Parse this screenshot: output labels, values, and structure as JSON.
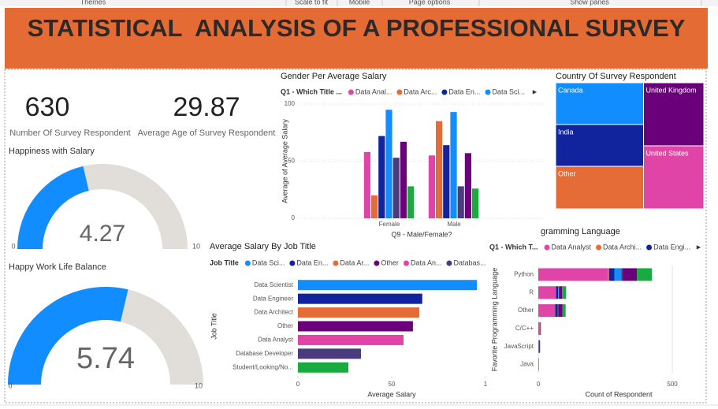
{
  "toolbar": {
    "items": [
      "Themes",
      "Scale to fit",
      "Mobile",
      "Page options",
      "Show panes"
    ]
  },
  "header": {
    "title": "STATISTICAL  ANALYSIS OF A PROFESSIONAL SURVEY"
  },
  "cards": [
    {
      "value": 630,
      "label": "Number Of Survey Respondent"
    },
    {
      "value": 29.87,
      "label": "Average Age of Survey Respondent"
    }
  ],
  "chart_data": [
    {
      "type": "gauge",
      "title": "Happiness with Salary",
      "value": 4.27,
      "min": 0,
      "max": 10,
      "color": "#118DFF",
      "track_color": "#E1DDD9"
    },
    {
      "type": "gauge",
      "title": "Happy Work Life Balance",
      "value": 5.74,
      "min": 0,
      "max": 10,
      "color": "#118DFF",
      "track_color": "#E1DDD9"
    },
    {
      "type": "column",
      "title": "Gender Per Average Salary",
      "legend_title": "Q1 - Which Title ...",
      "x_label": "Q9 - Male/Female?",
      "y_label": "Average of Average Salary",
      "categories": [
        "Female",
        "Male"
      ],
      "ylim": [
        0,
        100
      ],
      "yticks": [
        0,
        50,
        100
      ],
      "series": [
        {
          "name": "Data Anal...",
          "color": "#E044A7",
          "values": [
            58,
            55
          ]
        },
        {
          "name": "Data Arc...",
          "color": "#E66C37",
          "values": [
            20,
            85
          ]
        },
        {
          "name": "Data En...",
          "color": "#12239E",
          "values": [
            72,
            64
          ]
        },
        {
          "name": "Data Sci...",
          "color": "#118DFF",
          "values": [
            95,
            93
          ]
        },
        {
          "color": "#4A3B7C",
          "values": [
            53,
            28
          ]
        },
        {
          "color": "#6B007B",
          "values": [
            67,
            57
          ]
        },
        {
          "color": "#1AAB40",
          "values": [
            28,
            26
          ]
        }
      ]
    },
    {
      "type": "treemap",
      "title": "Country Of Survey Respondent",
      "categories": [
        "Canada",
        "India",
        "Other",
        "United Kingdom",
        "United States"
      ],
      "values": [
        59,
        59,
        60,
        61,
        61
      ],
      "colors": [
        "#118DFF",
        "#12239E",
        "#E66C37",
        "#6B007B",
        "#E044A7"
      ]
    },
    {
      "type": "hbar",
      "title": "Average Salary By Job Title",
      "legend_title": "Job Title",
      "legend": [
        "Data Sci...",
        "Data En...",
        "Data Ar...",
        "Other",
        "Data An...",
        "Databas..."
      ],
      "x_label": "Average Salary",
      "y_label": "Job Title",
      "categories": [
        "Data Scientist",
        "Data Engineer",
        "Data Architect",
        "Other",
        "Data Analyst",
        "Database Developer",
        "Student/Looking/No..."
      ],
      "values": [
        95.4,
        66.3,
        64.7,
        61.3,
        56.3,
        33.6,
        26.9
      ],
      "colors": [
        "#118DFF",
        "#12239E",
        "#E66C37",
        "#6B007B",
        "#E044A7",
        "#4A3B7C",
        "#1AAB40"
      ],
      "xlim": [
        0,
        100
      ],
      "xticks": [
        0,
        50,
        {
          "value": 100,
          "label": "1"
        }
      ]
    },
    {
      "type": "stacked_hbar",
      "title": "gramming Language",
      "legend_title": "Q1 - Which T...",
      "x_label": "Count of Respondent",
      "y_label": "Favorite Programming Language",
      "categories": [
        "Python",
        "R",
        "Other",
        "C/C++",
        "JavaScript",
        "Java"
      ],
      "xlim": [
        0,
        600
      ],
      "xticks": [
        0,
        500
      ],
      "series": [
        {
          "name": "Data Analyst",
          "color": "#E044A7",
          "values": [
            259,
            65,
            62,
            6,
            2,
            1
          ]
        },
        {
          "name": "Data Archi...",
          "color": "#E66C37",
          "values": [
            5,
            1,
            1,
            0,
            0,
            0
          ]
        },
        {
          "name": "Data Engi...",
          "color": "#12239E",
          "values": [
            20,
            8,
            9,
            1,
            3,
            1
          ]
        },
        {
          "color": "#118DFF",
          "values": [
            26,
            2,
            2,
            1,
            0,
            0
          ]
        },
        {
          "color": "#4A3B7C",
          "values": [
            5,
            1,
            1,
            0,
            0,
            0
          ]
        },
        {
          "color": "#6B007B",
          "values": [
            53,
            12,
            15,
            1,
            1,
            0
          ]
        },
        {
          "color": "#1AAB40",
          "values": [
            56,
            15,
            12,
            1,
            1,
            0
          ]
        }
      ]
    }
  ]
}
